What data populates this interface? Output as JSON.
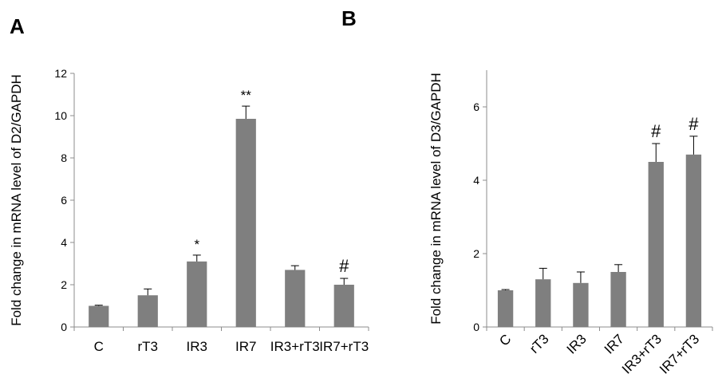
{
  "panels": [
    {
      "letter": "A"
    },
    {
      "letter": "B"
    }
  ],
  "chart_data": [
    {
      "type": "bar",
      "categories": [
        "C",
        "rT3",
        "IR3",
        "IR7",
        "IR3+rT3",
        "IR7+rT3"
      ],
      "values": [
        1.0,
        1.5,
        3.1,
        9.85,
        2.7,
        2.0
      ],
      "errors": [
        0.03,
        0.3,
        0.3,
        0.6,
        0.2,
        0.3
      ],
      "annotations": [
        "",
        "",
        "*",
        "**",
        "",
        "#"
      ],
      "ylabel": "Fold change in mRNA level of D2/GAPDH",
      "xlabel": "",
      "ylim": [
        0,
        12
      ],
      "yticks": [
        0,
        2,
        4,
        6,
        8,
        10,
        12
      ],
      "bar_color": "#7f7f7f",
      "grid": false,
      "rotate_x_labels": false
    },
    {
      "type": "bar",
      "categories": [
        "C",
        "rT3",
        "IR3",
        "IR7",
        "IR3+rT3",
        "IR7+rT3"
      ],
      "values": [
        1.0,
        1.3,
        1.2,
        1.5,
        4.5,
        4.7
      ],
      "errors": [
        0.02,
        0.3,
        0.3,
        0.2,
        0.5,
        0.5
      ],
      "annotations": [
        "",
        "",
        "",
        "",
        "#",
        "#"
      ],
      "ylabel": "Fold change in mRNA level of D3/GAPDH",
      "xlabel": "",
      "ylim": [
        0,
        7
      ],
      "yticks": [
        0,
        2,
        4,
        6
      ],
      "bar_color": "#7f7f7f",
      "grid": false,
      "rotate_x_labels": true
    }
  ]
}
